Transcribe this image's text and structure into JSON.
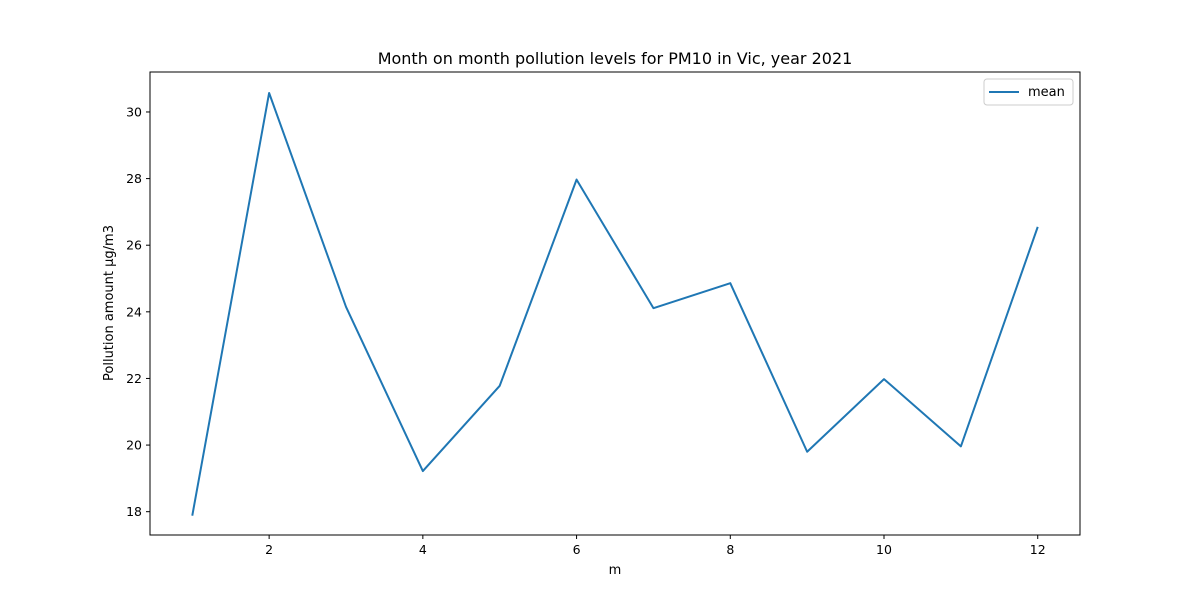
{
  "chart_data": {
    "type": "line",
    "title": "Month on month pollution levels for PM10 in Vic, year 2021",
    "xlabel": "m",
    "ylabel": "Pollution amount µg/m3",
    "x": [
      1,
      2,
      3,
      4,
      5,
      6,
      7,
      8,
      9,
      10,
      11,
      12
    ],
    "series": [
      {
        "name": "mean",
        "color": "#1f77b4",
        "values": [
          17.88,
          30.57,
          24.15,
          19.22,
          21.78,
          27.97,
          24.11,
          24.86,
          19.8,
          21.98,
          19.96,
          26.55
        ]
      }
    ],
    "xlim": [
      0.45,
      12.55
    ],
    "ylim": [
      17.3,
      31.2
    ],
    "xticks": [
      2,
      4,
      6,
      8,
      10,
      12
    ],
    "yticks": [
      18,
      20,
      22,
      24,
      26,
      28,
      30
    ],
    "grid": false,
    "legend": "top-right"
  }
}
